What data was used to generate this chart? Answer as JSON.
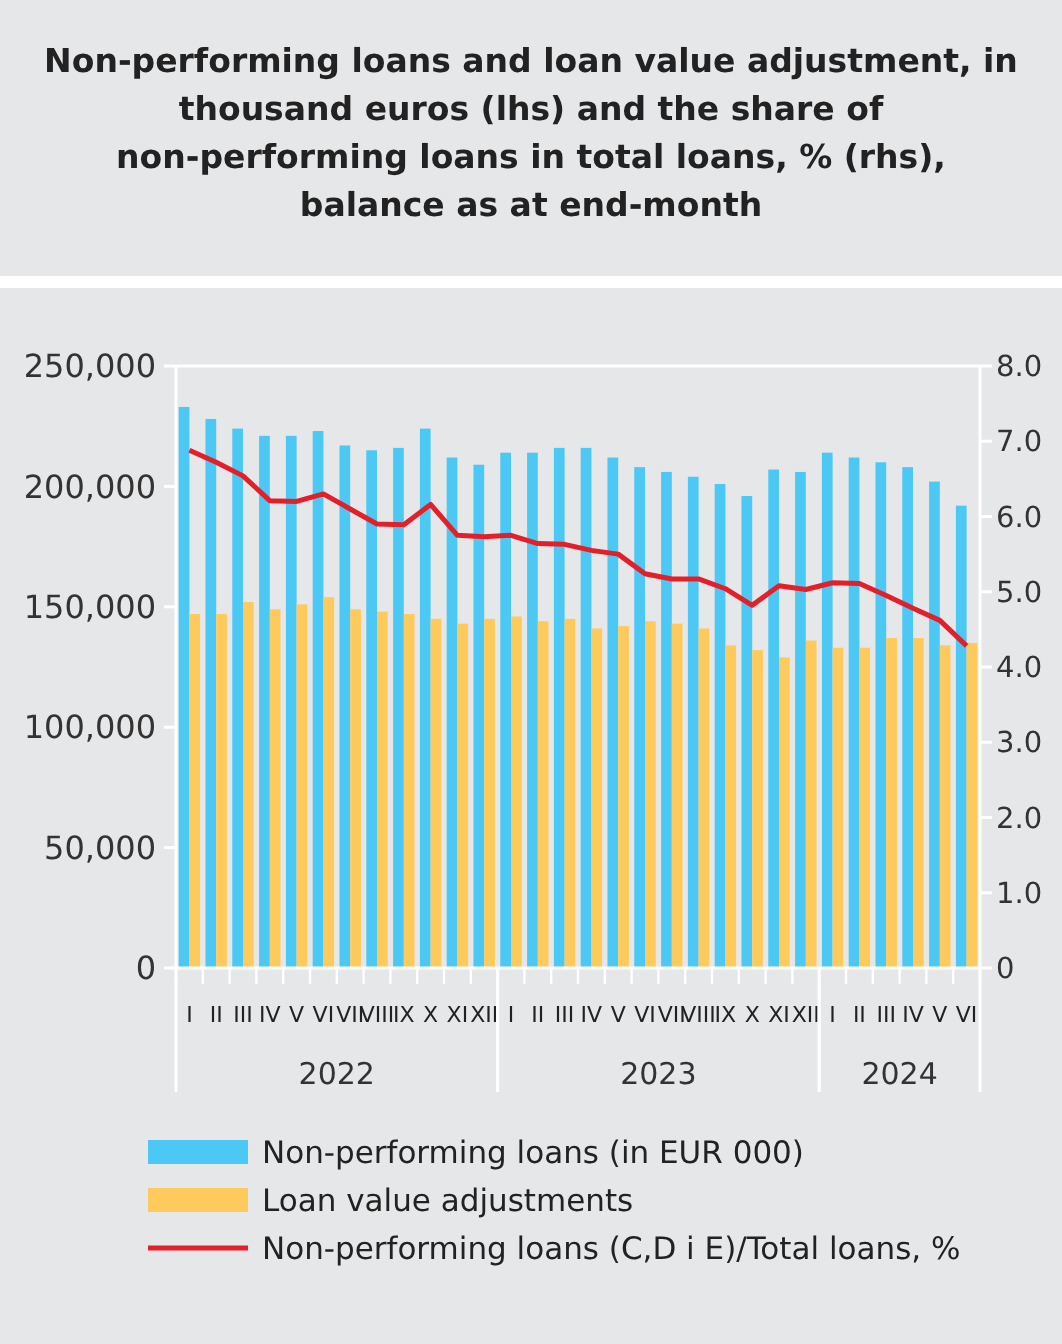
{
  "chart_data": {
    "type": "bar",
    "title": "Non-performing loans and loan value adjustment, in thousand euros (lhs) and the share of non-performing loans in total loans, % (rhs), balance as at end-month",
    "categories": [
      "I",
      "II",
      "III",
      "IV",
      "V",
      "VI",
      "VII",
      "VIII",
      "IX",
      "X",
      "XI",
      "XII",
      "I",
      "II",
      "III",
      "IV",
      "V",
      "VI",
      "VII",
      "VIII",
      "IX",
      "X",
      "XI",
      "XII",
      "I",
      "II",
      "III",
      "IV",
      "V",
      "VI"
    ],
    "annotations": [
      "2022",
      "2023",
      "2024"
    ],
    "series": [
      {
        "name": "Non-performing loans (in EUR 000)",
        "color": "#4cc8f4",
        "values": [
          233000,
          228000,
          224000,
          221000,
          221000,
          223000,
          217000,
          215000,
          216000,
          224000,
          212000,
          209000,
          214000,
          214000,
          216000,
          216000,
          212000,
          208000,
          206000,
          204000,
          201000,
          196000,
          207000,
          206000,
          214000,
          212000,
          210000,
          208000,
          202000,
          192000
        ]
      },
      {
        "name": "Loan value adjustments",
        "color": "#ffca5c",
        "values": [
          147000,
          147000,
          152000,
          149000,
          151000,
          154000,
          149000,
          148000,
          147000,
          145000,
          143000,
          145000,
          146000,
          144000,
          145000,
          141000,
          142000,
          144000,
          143000,
          141000,
          134000,
          132000,
          129000,
          136000,
          133000,
          133000,
          137000,
          137000,
          134000,
          135000
        ]
      },
      {
        "name": "Non-performing loans (C,D i E)/Total loans, %",
        "type": "line",
        "axis": "y2",
        "color": "#e3202a",
        "values": [
          6.88,
          6.72,
          6.54,
          6.21,
          6.2,
          6.3,
          6.1,
          5.9,
          5.89,
          6.16,
          5.75,
          5.73,
          5.75,
          5.64,
          5.63,
          5.55,
          5.5,
          5.24,
          5.17,
          5.17,
          5.04,
          4.82,
          5.08,
          5.03,
          5.12,
          5.11,
          4.95,
          4.78,
          4.62,
          4.28
        ]
      }
    ],
    "ylim": [
      0,
      250000
    ],
    "yticks": [
      {
        "value": 0,
        "label": "0"
      },
      {
        "value": 50000,
        "label": "50,000"
      },
      {
        "value": 100000,
        "label": "100,000"
      },
      {
        "value": 150000,
        "label": "150,000"
      },
      {
        "value": 200000,
        "label": "200,000"
      },
      {
        "value": 250000,
        "label": "250,000"
      }
    ],
    "y2lim": [
      0,
      8
    ],
    "y2ticks": [
      {
        "value": 0,
        "label": "0"
      },
      {
        "value": 1,
        "label": "1.0"
      },
      {
        "value": 2,
        "label": "2.0"
      },
      {
        "value": 3,
        "label": "3.0"
      },
      {
        "value": 4,
        "label": "4.0"
      },
      {
        "value": 5,
        "label": "5.0"
      },
      {
        "value": 6,
        "label": "6.0"
      },
      {
        "value": 7,
        "label": "7.0"
      },
      {
        "value": 8,
        "label": "8.0"
      }
    ],
    "grid": false,
    "legend": "bottom",
    "line_style": "solid",
    "marker": "none"
  }
}
